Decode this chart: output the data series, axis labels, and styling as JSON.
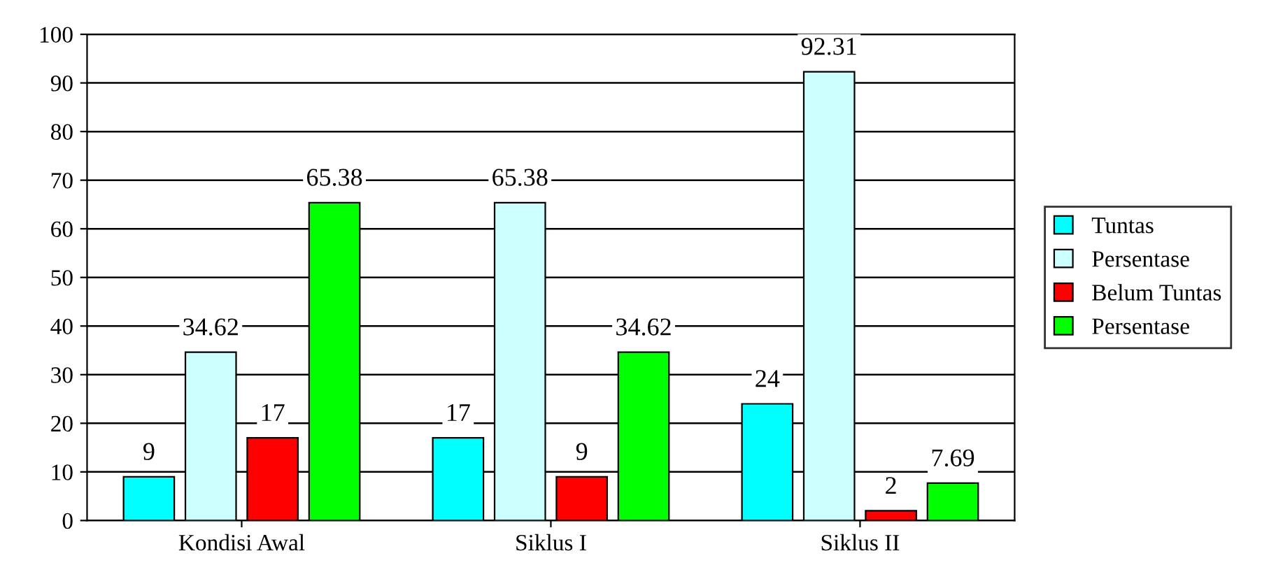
{
  "chart_data": {
    "type": "bar",
    "categories": [
      "Kondisi Awal",
      "Siklus I",
      "Siklus II"
    ],
    "series": [
      {
        "name": "Tuntas",
        "color": "#00ffff",
        "values": [
          9,
          17,
          24
        ]
      },
      {
        "name": "Persentase",
        "color": "#ccffff",
        "values": [
          34.62,
          65.38,
          92.31
        ]
      },
      {
        "name": "Belum Tuntas",
        "color": "#ff0000",
        "values": [
          17,
          9,
          2
        ]
      },
      {
        "name": "Persentase",
        "color": "#00ff00",
        "values": [
          65.38,
          34.62,
          7.69
        ]
      }
    ],
    "ylim": [
      0,
      100
    ],
    "yticks": [
      0,
      10,
      20,
      30,
      40,
      50,
      60,
      70,
      80,
      90,
      100
    ],
    "grid": "y",
    "legend": "right",
    "data_labels": true
  }
}
